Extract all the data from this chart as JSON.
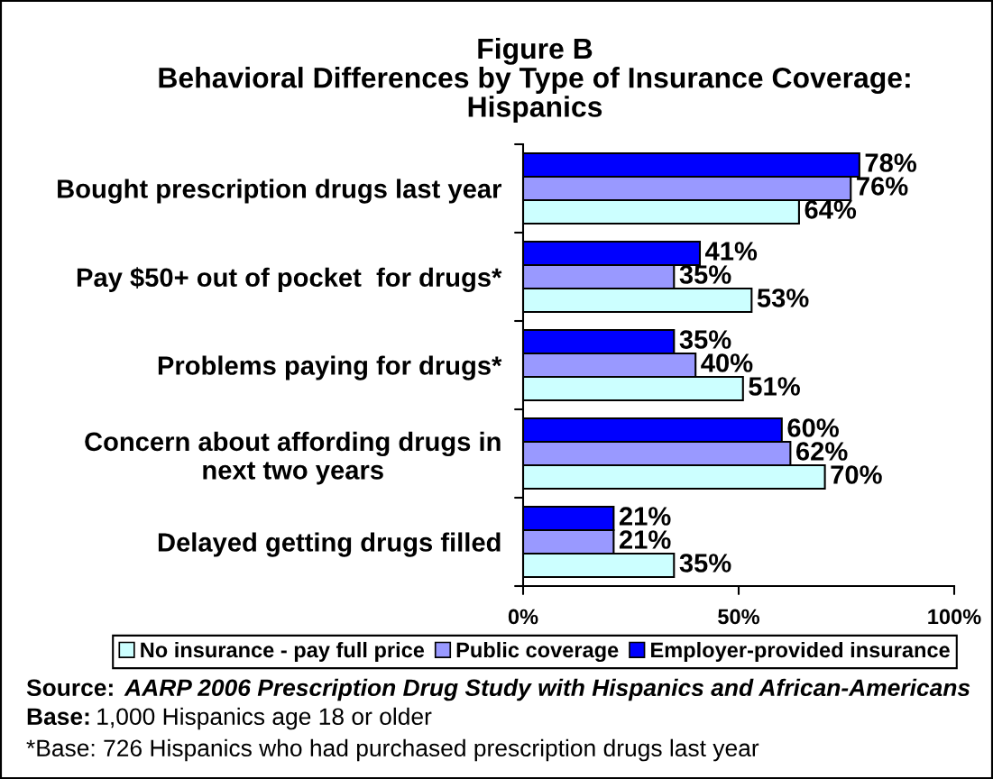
{
  "chart_data": {
    "type": "bar",
    "orientation": "horizontal",
    "title": "Figure B\nBehavioral Differences by Type of Insurance Coverage:\nHispanics",
    "categories": [
      "Bought prescription drugs last year",
      "Pay $50+ out of pocket  for drugs*",
      "Problems paying for drugs*",
      "Concern about affording drugs in\nnext two years",
      "Delayed getting drugs filled"
    ],
    "series": [
      {
        "name": "No insurance - pay full price",
        "color": "#ccffff",
        "values": [
          64,
          53,
          51,
          70,
          35
        ],
        "value_labels": [
          "64%",
          "53%",
          "51%",
          "70%",
          "35%"
        ]
      },
      {
        "name": "Public coverage",
        "color": "#9999ff",
        "values": [
          76,
          35,
          40,
          62,
          21
        ],
        "value_labels": [
          "76%",
          "35%",
          "40%",
          "62%",
          "21%"
        ]
      },
      {
        "name": "Employer-provided insurance",
        "color": "#0000ff",
        "values": [
          78,
          41,
          35,
          60,
          21
        ],
        "value_labels": [
          "78%",
          "41%",
          "35%",
          "60%",
          "21%"
        ]
      }
    ],
    "xlim": [
      0,
      100
    ],
    "xticks": [
      {
        "value": 0,
        "label": "0%"
      },
      {
        "value": 50,
        "label": "50%"
      },
      {
        "value": 100,
        "label": "100%"
      }
    ],
    "legend": "bottom",
    "annotations": [
      "Source:  AARP 2006 Prescription Drug Study with Hispanics and African-Americans",
      "Base: 1,000 Hispanics age 18 or older",
      "*Base: 726 Hispanics who had purchased prescription drugs last year"
    ]
  }
}
